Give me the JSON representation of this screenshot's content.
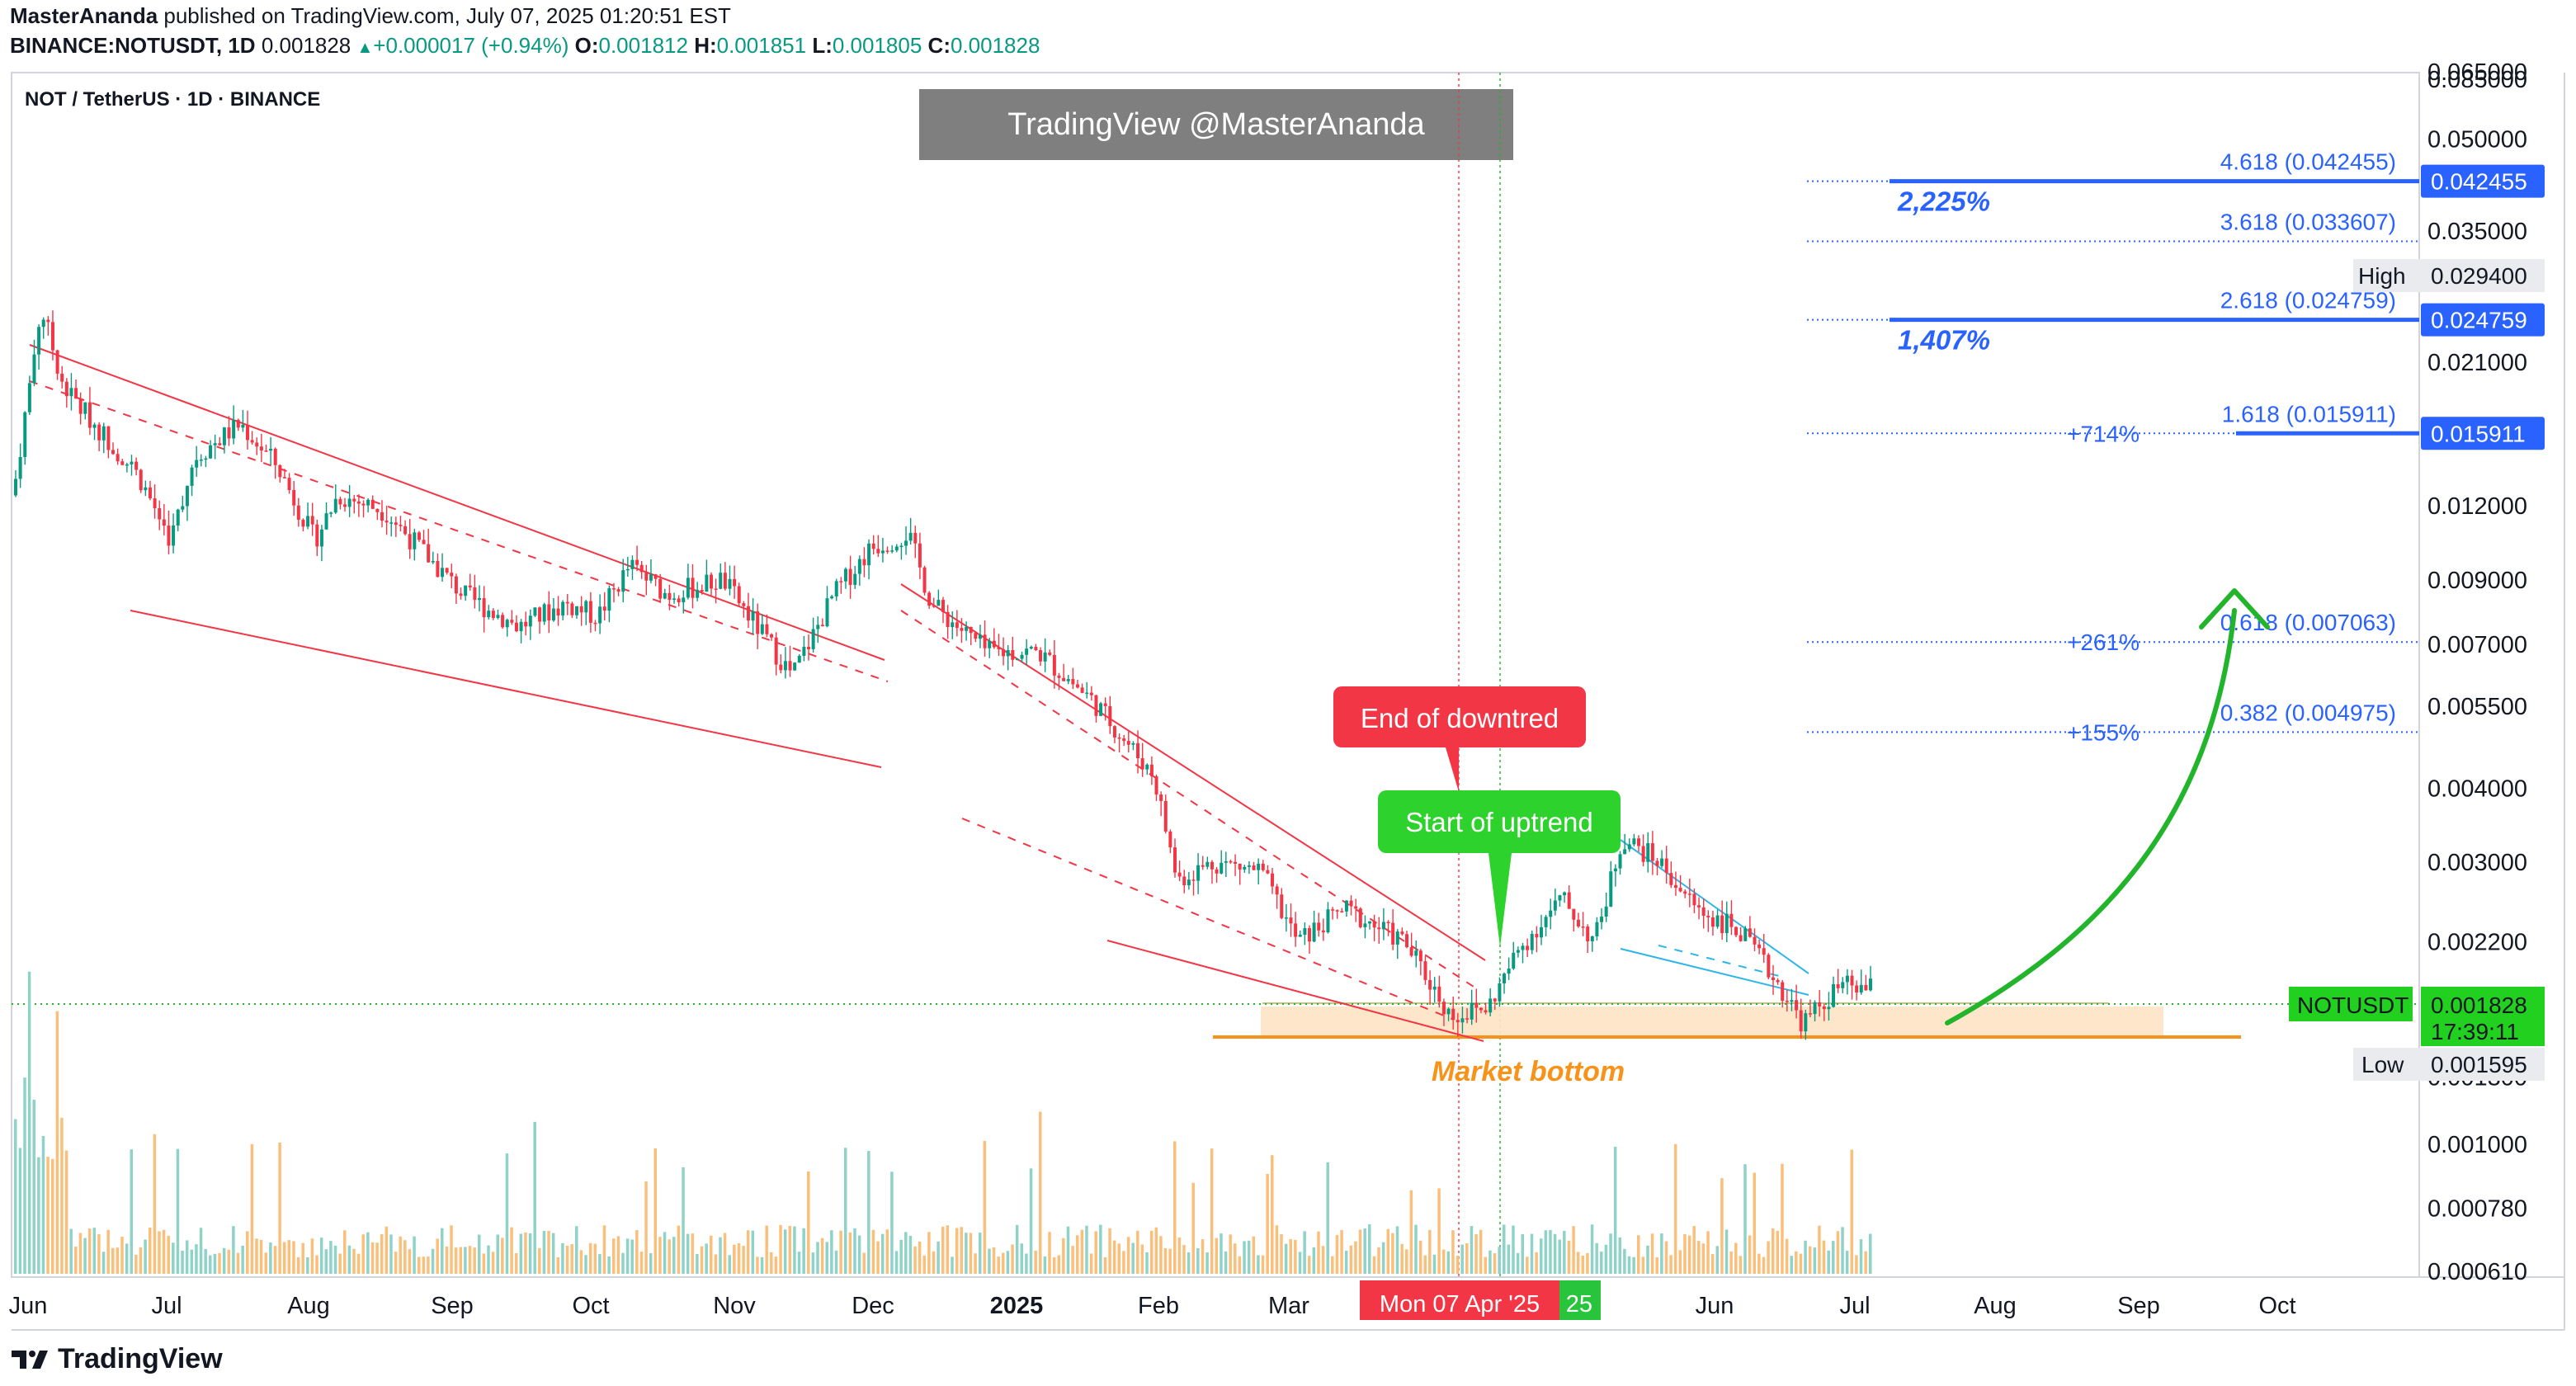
{
  "header": {
    "publisher": "MasterAnanda",
    "published_text": "published on TradingView.com, July 07, 2025 01:20:51 EST",
    "symbol_line_prefix": "BINANCE:NOTUSDT, 1D",
    "last": "0.001828",
    "change_arrow": "▲",
    "change": "+0.000017 (+0.94%)",
    "o_label": "O:",
    "o": "0.001812",
    "h_label": "H:",
    "h": "0.001851",
    "l_label": "L:",
    "l": "0.001805",
    "c_label": "C:",
    "c": "0.001828"
  },
  "legend_title": "NOT / TetherUS · 1D · BINANCE",
  "watermark": "TradingView @MasterAnanda",
  "footer_brand": "TradingView",
  "colors": {
    "up": "#089981",
    "down": "#f23645",
    "wedge": "#f23645",
    "cyan": "#2fb6e8",
    "fib": "#2962ff",
    "bottom_zone": "#fde3c4",
    "bottom_line": "#f7931a",
    "arrow": "#22b52c",
    "price_tag": "#22d11f",
    "vol_up": "#8fd3c8",
    "vol_down": "#fbbf7c"
  },
  "chart_data": {
    "type": "candlestick",
    "symbol": "NOTUSDT",
    "timeframe": "1D",
    "y_scale": "log",
    "x_ticks": [
      "Jun",
      "Jul",
      "Aug",
      "Sep",
      "Oct",
      "Nov",
      "Dec",
      "2025",
      "Feb",
      "Mar",
      "Jun",
      "Jul",
      "Aug",
      "Sep",
      "Oct"
    ],
    "y_ticks": [
      "0.085000",
      "0.065000",
      "0.050000",
      "0.035000",
      "0.029400",
      "0.021000",
      "0.012000",
      "0.009000",
      "0.007000",
      "0.005500",
      "0.004000",
      "0.003000",
      "0.002200",
      "0.001300",
      "0.001000",
      "0.000780",
      "0.000610"
    ],
    "y_tick_values": [
      0.085,
      0.065,
      0.05,
      0.035,
      0.0294,
      0.021,
      0.012,
      0.009,
      0.007,
      0.0055,
      0.004,
      0.003,
      0.0022,
      0.0013,
      0.001,
      0.00078,
      0.00061
    ],
    "close_path": [
      [
        "2024-06-01",
        0.0125
      ],
      [
        "2024-06-07",
        0.026
      ],
      [
        "2024-06-12",
        0.019
      ],
      [
        "2024-06-20",
        0.016
      ],
      [
        "2024-06-28",
        0.0135
      ],
      [
        "2024-07-05",
        0.0105
      ],
      [
        "2024-07-10",
        0.0145
      ],
      [
        "2024-07-20",
        0.0165
      ],
      [
        "2024-07-28",
        0.014
      ],
      [
        "2024-08-05",
        0.0105
      ],
      [
        "2024-08-10",
        0.0125
      ],
      [
        "2024-08-20",
        0.0118
      ],
      [
        "2024-08-26",
        0.0105
      ],
      [
        "2024-09-06",
        0.0085
      ],
      [
        "2024-09-18",
        0.0075
      ],
      [
        "2024-09-28",
        0.0082
      ],
      [
        "2024-10-05",
        0.0078
      ],
      [
        "2024-10-12",
        0.0095
      ],
      [
        "2024-10-20",
        0.0085
      ],
      [
        "2024-11-01",
        0.009
      ],
      [
        "2024-11-10",
        0.0072
      ],
      [
        "2024-11-16",
        0.0062
      ],
      [
        "2024-11-25",
        0.0085
      ],
      [
        "2024-12-03",
        0.0102
      ],
      [
        "2024-12-11",
        0.0108
      ],
      [
        "2024-12-16",
        0.0082
      ],
      [
        "2024-12-28",
        0.0068
      ],
      [
        "2025-01-08",
        0.0068
      ],
      [
        "2025-01-20",
        0.0056
      ],
      [
        "2025-02-02",
        0.0042
      ],
      [
        "2025-02-07",
        0.0028
      ],
      [
        "2025-02-15",
        0.003
      ],
      [
        "2025-02-25",
        0.0029
      ],
      [
        "2025-03-05",
        0.0022
      ],
      [
        "2025-03-15",
        0.0025
      ],
      [
        "2025-03-28",
        0.0022
      ],
      [
        "2025-04-07",
        0.00165
      ],
      [
        "2025-04-15",
        0.0017
      ],
      [
        "2025-04-22",
        0.00215
      ],
      [
        "2025-05-01",
        0.0026
      ],
      [
        "2025-05-08",
        0.0022
      ],
      [
        "2025-05-14",
        0.0033
      ],
      [
        "2025-05-22",
        0.003
      ],
      [
        "2025-05-30",
        0.0025
      ],
      [
        "2025-06-08",
        0.0023
      ],
      [
        "2025-06-16",
        0.0019
      ],
      [
        "2025-06-22",
        0.0016
      ],
      [
        "2025-06-30",
        0.00185
      ],
      [
        "2025-07-07",
        0.001828
      ]
    ],
    "last_price": "0.001828",
    "countdown": "17:39:11",
    "high": {
      "label": "High",
      "value": "0.029400"
    },
    "low": {
      "label": "Low",
      "value": "0.001595"
    },
    "fib_levels": [
      {
        "ratio_label": "4.618 (0.042455)",
        "value": 0.042455,
        "tag": "0.042455",
        "pct": "2,225%"
      },
      {
        "ratio_label": "3.618 (0.033607)",
        "value": 0.033607
      },
      {
        "ratio_label": "2.618 (0.024759)",
        "value": 0.024759,
        "tag": "0.024759",
        "pct": "1,407%"
      },
      {
        "ratio_label": "1.618 (0.015911)",
        "value": 0.015911,
        "tag": "0.015911",
        "pct": "+714%"
      },
      {
        "ratio_label": "0.618 (0.007063)",
        "value": 0.007063,
        "pct": "+261%"
      },
      {
        "ratio_label": "0.382 (0.004975)",
        "value": 0.004975,
        "pct": "+155%"
      }
    ],
    "annotations": {
      "end_downtrend": "End of downtred",
      "start_uptrend": "Start of uptrend",
      "market_bottom": "Market bottom",
      "date_marker": "Mon 07 Apr '25",
      "date_marker2": "25",
      "symbol_tag": "NOTUSDT"
    }
  }
}
